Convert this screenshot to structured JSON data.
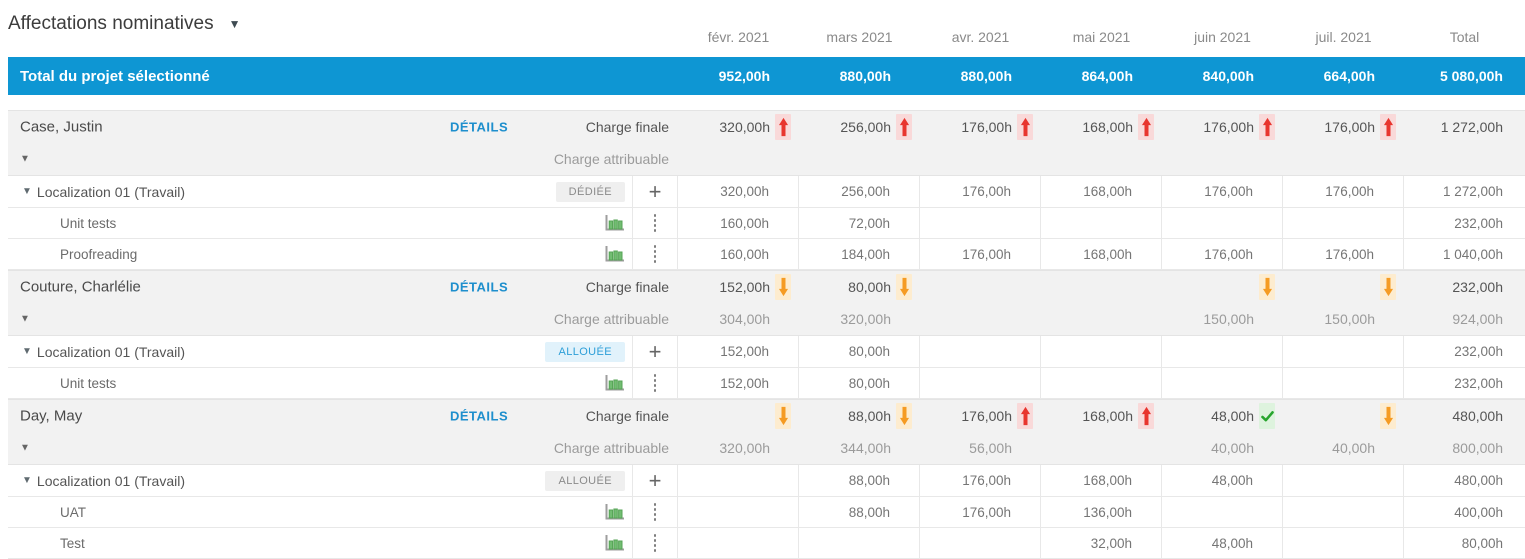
{
  "title": "Affectations nominatives",
  "columns": [
    "févr. 2021",
    "mars 2021",
    "avr. 2021",
    "mai 2021",
    "juin 2021",
    "juil. 2021",
    "Total"
  ],
  "project_total": {
    "label": "Total du projet sélectionné",
    "cells": [
      "952,00h",
      "880,00h",
      "880,00h",
      "864,00h",
      "840,00h",
      "664,00h",
      "5 080,00h"
    ]
  },
  "row_labels": {
    "details": "DÉTAILS",
    "charge_finale": "Charge finale",
    "charge_attribuable": "Charge attribuable"
  },
  "icons": {
    "caret_down": "▼",
    "plus": "+"
  },
  "colors": {
    "accent_blue": "#0e96d3",
    "details_link": "#1e8fcd",
    "badge_blue_bg": "#e1f2fb",
    "badge_blue_text": "#2d9fd8",
    "badge_gray_bg": "#efefef",
    "badge_gray_text": "#8a8a8a",
    "indicator_up": "#e8352e",
    "indicator_up_bg": "#f9d9d9",
    "indicator_down": "#f59b23",
    "indicator_down_bg": "#fdeccf",
    "indicator_check": "#28a52e",
    "indicator_check_bg": "#def3de"
  },
  "people": [
    {
      "name": "Case, Justin",
      "finale": {
        "cells": [
          {
            "v": "320,00h",
            "i": "up"
          },
          {
            "v": "256,00h",
            "i": "up"
          },
          {
            "v": "176,00h",
            "i": "up"
          },
          {
            "v": "168,00h",
            "i": "up"
          },
          {
            "v": "176,00h",
            "i": "up"
          },
          {
            "v": "176,00h",
            "i": "up"
          },
          {
            "v": "1 272,00h",
            "i": ""
          }
        ]
      },
      "attribuable": {
        "cells": [
          "",
          "",
          "",
          "",
          "",
          "",
          ""
        ]
      },
      "children": [
        {
          "type": "assignment",
          "label": "Localization 01 (Travail)",
          "badge": "DÉDIÉE",
          "badge_style": "gray",
          "cells": [
            "320,00h",
            "256,00h",
            "176,00h",
            "168,00h",
            "176,00h",
            "176,00h",
            "1 272,00h"
          ]
        },
        {
          "type": "task",
          "label": "Unit tests",
          "cells": [
            "160,00h",
            "72,00h",
            "",
            "",
            "",
            "",
            "232,00h"
          ]
        },
        {
          "type": "task",
          "label": "Proofreading",
          "cells": [
            "160,00h",
            "184,00h",
            "176,00h",
            "168,00h",
            "176,00h",
            "176,00h",
            "1 040,00h"
          ]
        }
      ]
    },
    {
      "name": "Couture, Charlélie",
      "finale": {
        "cells": [
          {
            "v": "152,00h",
            "i": "down"
          },
          {
            "v": "80,00h",
            "i": "down"
          },
          {
            "v": "",
            "i": ""
          },
          {
            "v": "",
            "i": ""
          },
          {
            "v": "",
            "i": "down"
          },
          {
            "v": "",
            "i": "down"
          },
          {
            "v": "232,00h",
            "i": ""
          }
        ]
      },
      "attribuable": {
        "cells": [
          "304,00h",
          "320,00h",
          "",
          "",
          "150,00h",
          "150,00h",
          "924,00h"
        ]
      },
      "children": [
        {
          "type": "assignment",
          "label": "Localization 01 (Travail)",
          "badge": "ALLOUÉE",
          "badge_style": "blue",
          "cells": [
            "152,00h",
            "80,00h",
            "",
            "",
            "",
            "",
            "232,00h"
          ]
        },
        {
          "type": "task",
          "label": "Unit tests",
          "cells": [
            "152,00h",
            "80,00h",
            "",
            "",
            "",
            "",
            "232,00h"
          ]
        }
      ]
    },
    {
      "name": "Day, May",
      "finale": {
        "cells": [
          {
            "v": "",
            "i": "down"
          },
          {
            "v": "88,00h",
            "i": "down"
          },
          {
            "v": "176,00h",
            "i": "up"
          },
          {
            "v": "168,00h",
            "i": "up"
          },
          {
            "v": "48,00h",
            "i": "check"
          },
          {
            "v": "",
            "i": "down"
          },
          {
            "v": "480,00h",
            "i": ""
          }
        ]
      },
      "attribuable": {
        "cells": [
          "320,00h",
          "344,00h",
          "56,00h",
          "",
          "40,00h",
          "40,00h",
          "800,00h"
        ]
      },
      "children": [
        {
          "type": "assignment",
          "label": "Localization 01 (Travail)",
          "badge": "ALLOUÉE",
          "badge_style": "gray",
          "cells": [
            "",
            "88,00h",
            "176,00h",
            "168,00h",
            "48,00h",
            "",
            "480,00h"
          ]
        },
        {
          "type": "task",
          "label": "UAT",
          "cells": [
            "",
            "88,00h",
            "176,00h",
            "136,00h",
            "",
            "",
            "400,00h"
          ]
        },
        {
          "type": "task",
          "label": "Test",
          "cells": [
            "",
            "",
            "",
            "32,00h",
            "48,00h",
            "",
            "80,00h"
          ]
        }
      ]
    }
  ]
}
